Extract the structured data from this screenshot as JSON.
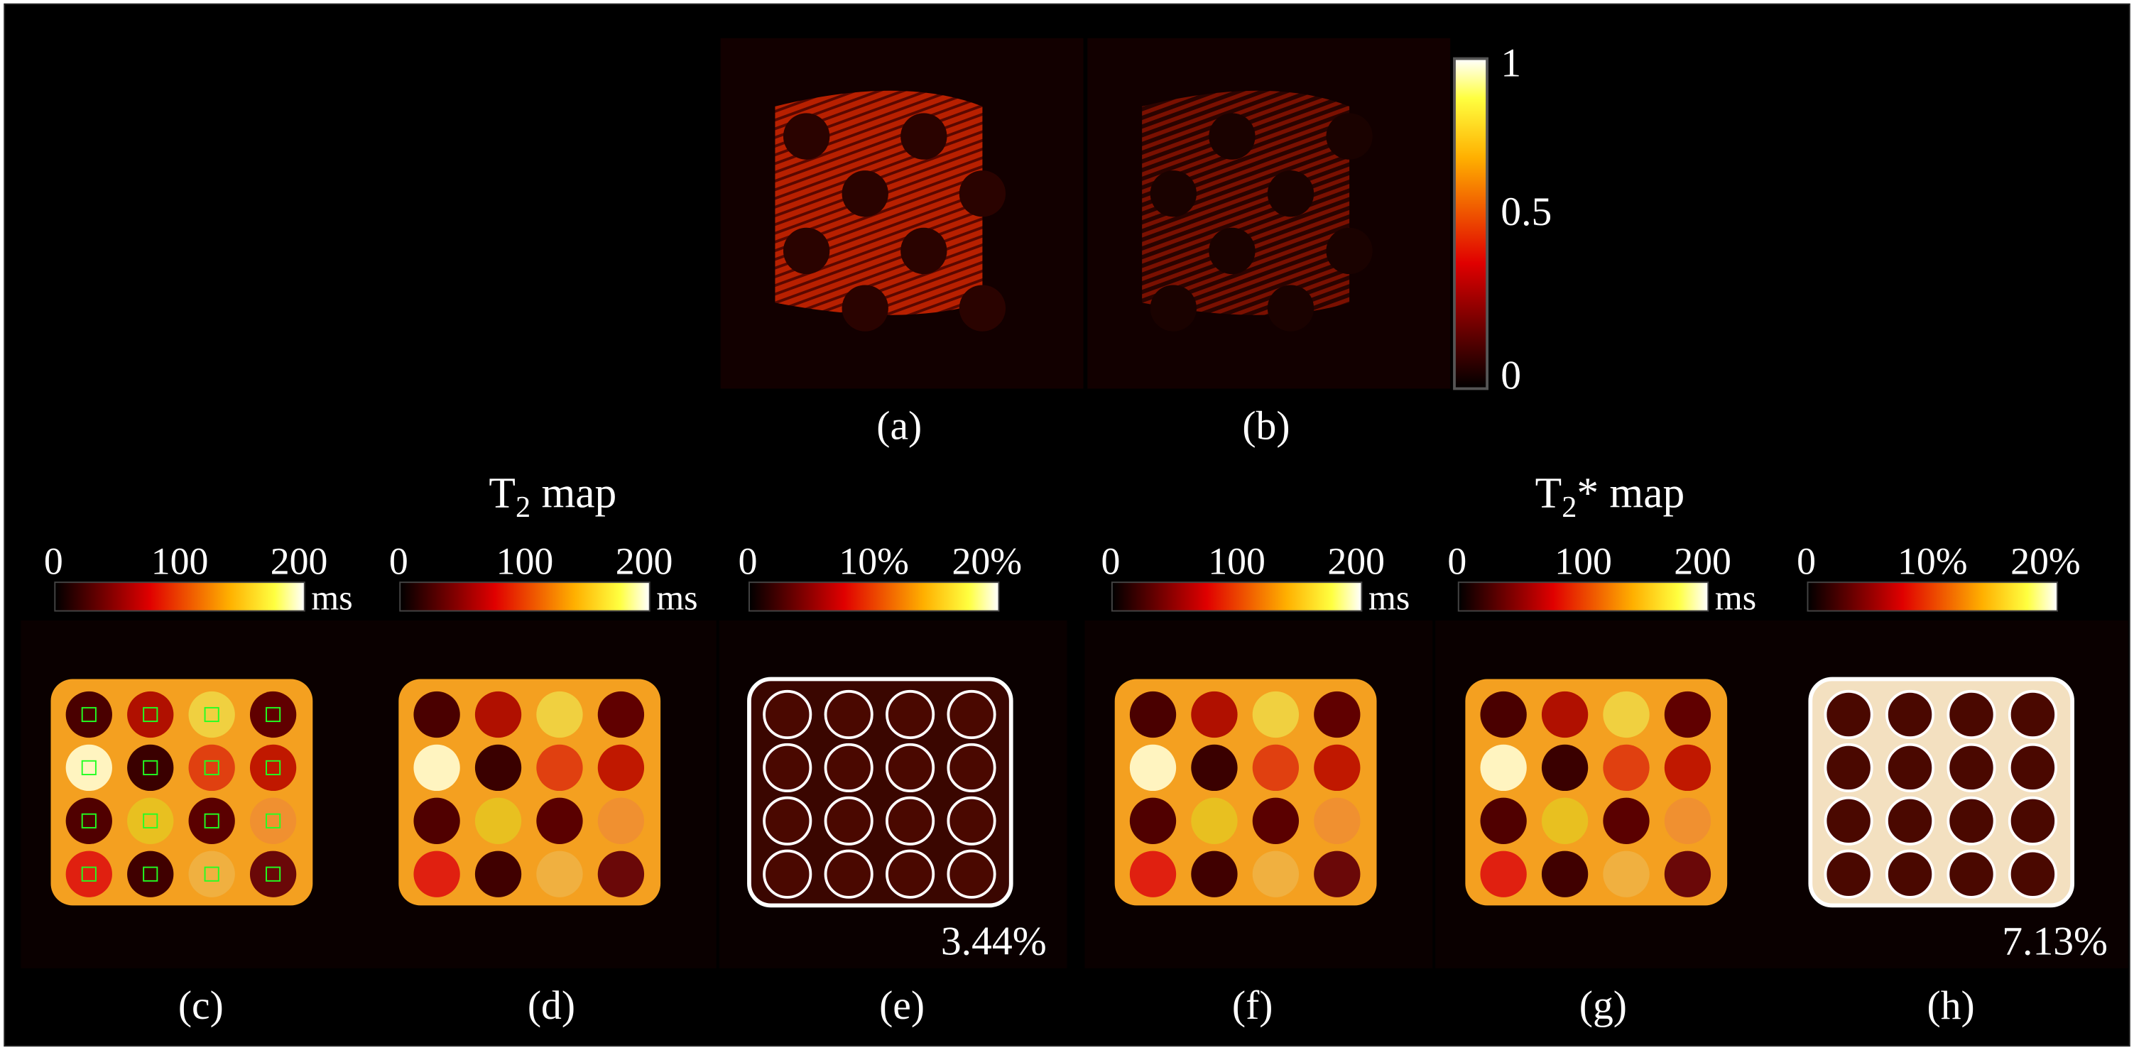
{
  "top_panels": [
    {
      "label": "(a)"
    },
    {
      "label": "(b)"
    }
  ],
  "top_colorbar": {
    "ticks": [
      "1",
      "0.5",
      "0"
    ]
  },
  "titles": [
    {
      "main": "T",
      "sub": "2",
      "rest": " map"
    },
    {
      "main": "T",
      "sub": "2",
      "rest": "* map"
    }
  ],
  "colorbars": [
    {
      "ticks": [
        "0",
        "100",
        "200"
      ],
      "unit": "ms"
    },
    {
      "ticks": [
        "0",
        "100",
        "200"
      ],
      "unit": "ms"
    },
    {
      "ticks": [
        "0",
        "10%",
        "20%"
      ]
    },
    {
      "ticks": [
        "0",
        "100",
        "200"
      ],
      "unit": "ms"
    },
    {
      "ticks": [
        "0",
        "100",
        "200"
      ],
      "unit": "ms"
    },
    {
      "ticks": [
        "0",
        "10%",
        "20%"
      ]
    }
  ],
  "panels": [
    {
      "label": "(c)"
    },
    {
      "label": "(d)"
    },
    {
      "label": "(e)",
      "annotation": "3.44%"
    },
    {
      "label": "(f)"
    },
    {
      "label": "(g)"
    },
    {
      "label": "(h)",
      "annotation": "7.13%"
    }
  ]
}
